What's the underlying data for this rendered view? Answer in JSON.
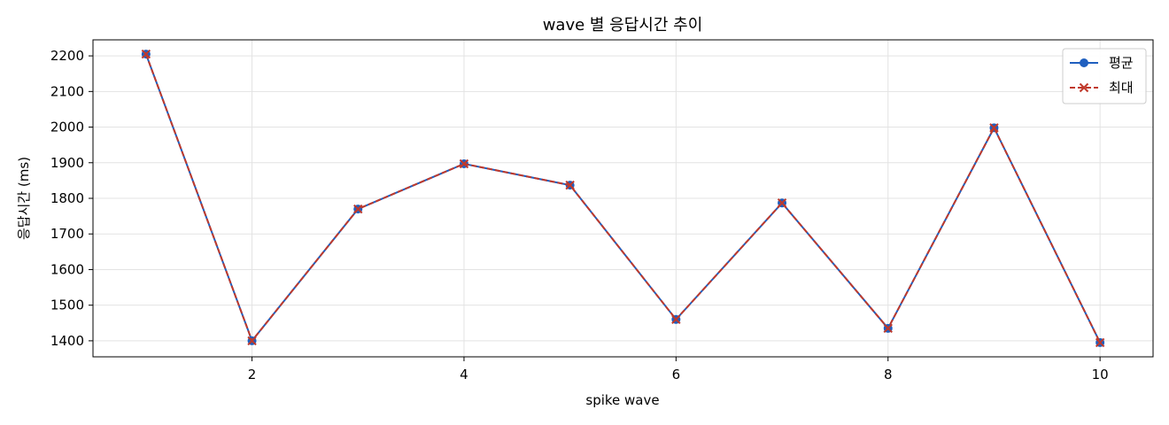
{
  "chart_data": {
    "type": "line",
    "title": "wave 별 응답시간 추이",
    "xlabel": "spike wave",
    "ylabel": "응답시간 (ms)",
    "x": [
      1,
      2,
      3,
      4,
      5,
      6,
      7,
      8,
      9,
      10
    ],
    "xlim": [
      0.5,
      10.5
    ],
    "ylim": [
      1355,
      2245
    ],
    "xticks": [
      2,
      4,
      6,
      8,
      10
    ],
    "yticks": [
      1400,
      1500,
      1600,
      1700,
      1800,
      1900,
      2000,
      2100,
      2200
    ],
    "grid": true,
    "legend_position": "top-right",
    "series": [
      {
        "name": "평균",
        "values": [
          2205,
          1400,
          1770,
          1897,
          1837,
          1460,
          1787,
          1435,
          1998,
          1395
        ],
        "color": "#1f5fbf",
        "marker": "circle",
        "line_style": "solid"
      },
      {
        "name": "최대",
        "values": [
          2205,
          1400,
          1770,
          1897,
          1837,
          1460,
          1787,
          1435,
          1998,
          1395
        ],
        "color": "#c0392b",
        "marker": "x",
        "line_style": "dashed"
      }
    ]
  }
}
